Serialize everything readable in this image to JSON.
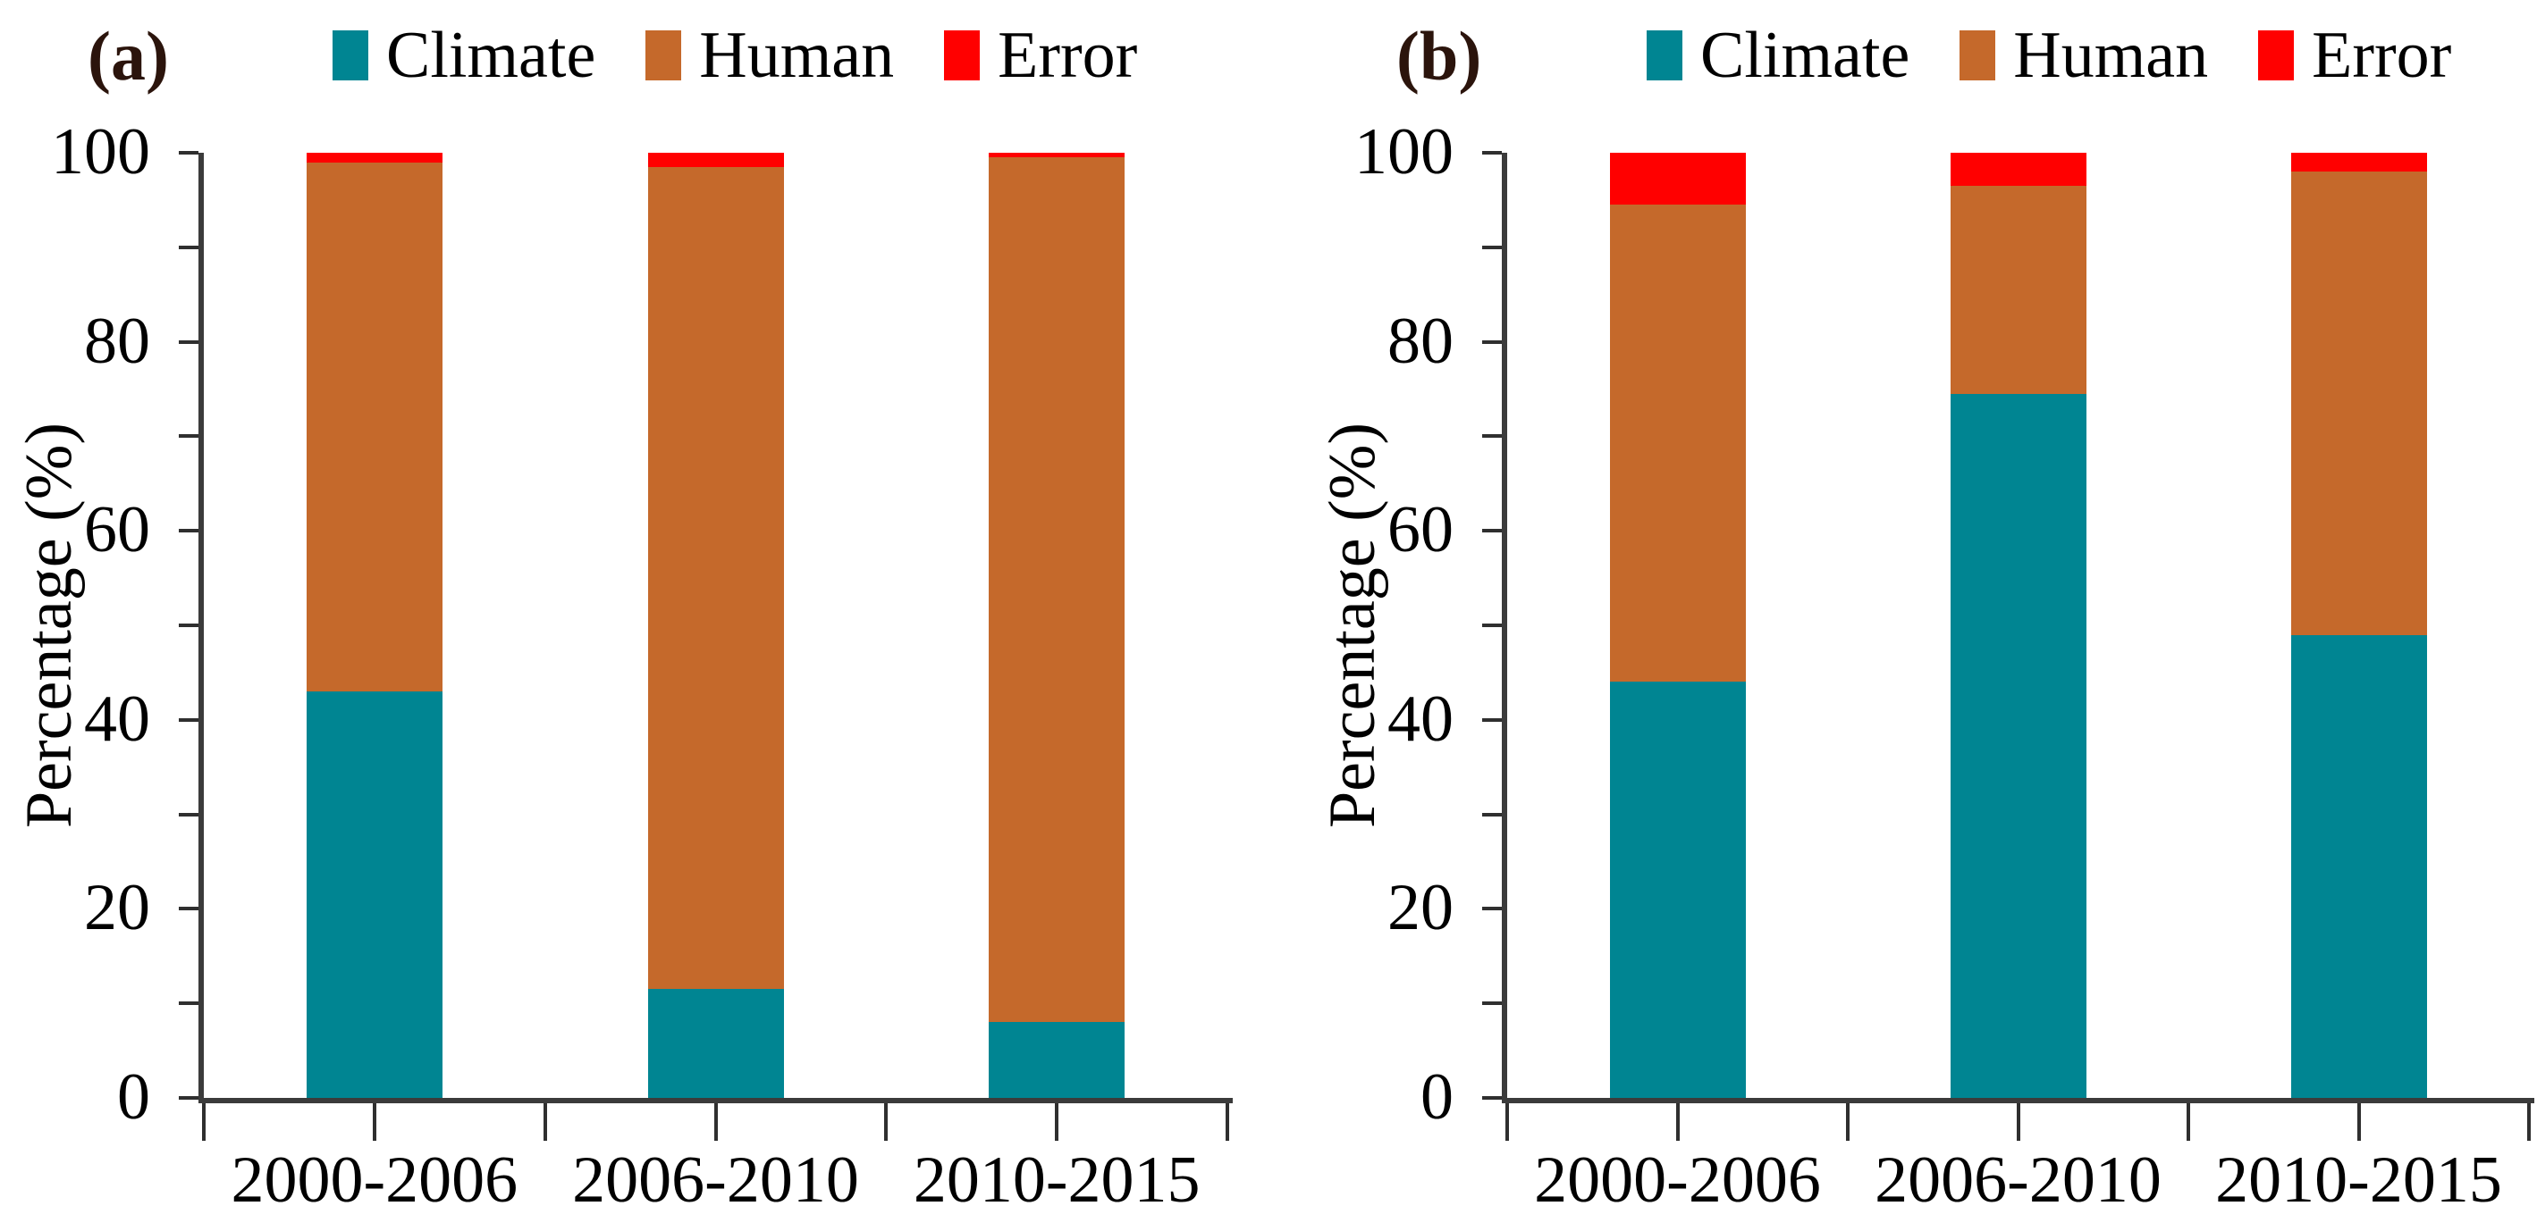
{
  "chart_data": [
    {
      "type": "bar",
      "stacked": true,
      "panel_label": "(a)",
      "categories": [
        "2000-2006",
        "2006-2010",
        "2010-2015"
      ],
      "series": [
        {
          "name": "Climate",
          "color": "#008592",
          "values": [
            43,
            11.5,
            8
          ]
        },
        {
          "name": "Human",
          "color": "#C5692B",
          "values": [
            56,
            87,
            91.5
          ]
        },
        {
          "name": "Error",
          "color": "#FF0000",
          "values": [
            1,
            1.5,
            0.5
          ]
        }
      ],
      "xlabel": "",
      "ylabel": "Percentage (%)",
      "ylim": [
        0,
        100
      ],
      "yticks_labeled": [
        0,
        20,
        40,
        60,
        80,
        100
      ],
      "yticks_minor_step": 10,
      "legend_position": "top",
      "grid": false
    },
    {
      "type": "bar",
      "stacked": true,
      "panel_label": "(b)",
      "categories": [
        "2000-2006",
        "2006-2010",
        "2010-2015"
      ],
      "series": [
        {
          "name": "Climate",
          "color": "#008592",
          "values": [
            44,
            74.5,
            49
          ]
        },
        {
          "name": "Human",
          "color": "#C5692B",
          "values": [
            50.5,
            22,
            49
          ]
        },
        {
          "name": "Error",
          "color": "#FF0000",
          "values": [
            5.5,
            3.5,
            2
          ]
        }
      ],
      "xlabel": "",
      "ylabel": "Percentage (%)",
      "ylim": [
        0,
        100
      ],
      "yticks_labeled": [
        0,
        20,
        40,
        60,
        80,
        100
      ],
      "yticks_minor_step": 10,
      "legend_position": "top",
      "grid": false
    }
  ]
}
